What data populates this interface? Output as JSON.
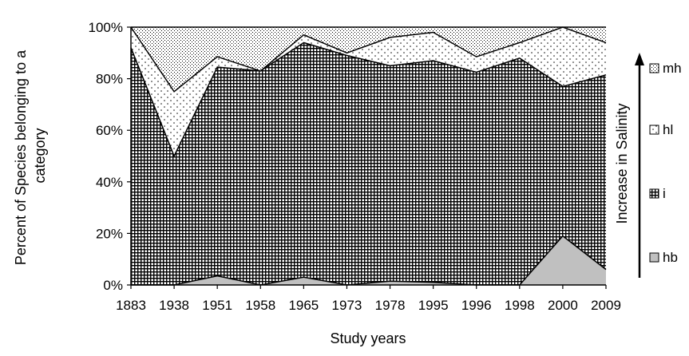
{
  "chart_data": {
    "type": "area",
    "stacked": true,
    "xlabel": "Study years",
    "ylabel_lines": [
      "Percent of Species belonging to a",
      "category"
    ],
    "categories": [
      "1883",
      "1938",
      "1951",
      "1958",
      "1965",
      "1973",
      "1978",
      "1995",
      "1996",
      "1998",
      "2000",
      "2009"
    ],
    "ylim": [
      0,
      100
    ],
    "yticks": [
      "0%",
      "20%",
      "40%",
      "60%",
      "80%",
      "100%"
    ],
    "series": [
      {
        "name": "hb",
        "values": [
          0,
          0,
          3.5,
          0,
          3,
          0,
          1.5,
          1,
          0,
          0,
          19,
          6
        ]
      },
      {
        "name": "i",
        "values": [
          92,
          50,
          81,
          83,
          91,
          89,
          83.5,
          86,
          82.5,
          88,
          58,
          75.5
        ]
      },
      {
        "name": "hl",
        "values": [
          8,
          25,
          4,
          0,
          3,
          1,
          11,
          11,
          6,
          6,
          23,
          12.5
        ]
      },
      {
        "name": "mh",
        "values": [
          0,
          25,
          11.5,
          17,
          3,
          10,
          4,
          2,
          11.5,
          6,
          0,
          6
        ]
      }
    ],
    "legend_order": [
      "mh",
      "hl",
      "i",
      "hb"
    ],
    "legend_position": "right",
    "grid": false
  },
  "annotation": {
    "text": "Increase in Salinity"
  },
  "colors": {
    "hb_fill": "#c0c0c0",
    "line": "#000000"
  }
}
